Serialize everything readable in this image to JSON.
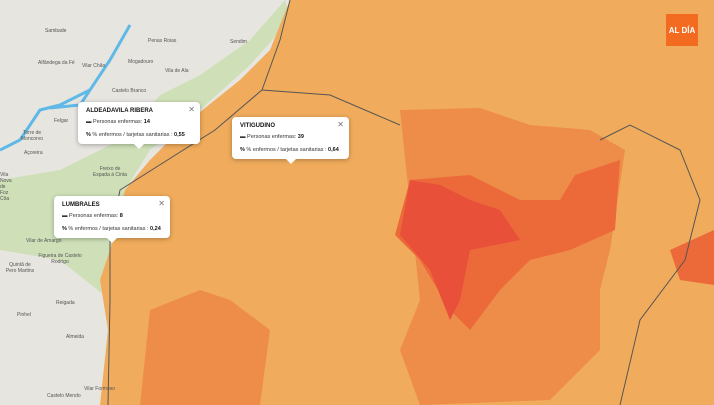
{
  "logo": {
    "text": "AL DÍA",
    "color": "#f26b21"
  },
  "colors": {
    "low": "#f0ac5c",
    "mid": "#ee8c4a",
    "high": "#ec6a3a",
    "highest": "#e8503a",
    "portugal_green": "#cfe0b8",
    "land": "#e7e5e0",
    "water": "#5fb8e6"
  },
  "places": [
    "Sambade",
    "Penas Roias",
    "Sendim",
    "Alfândega da Fé",
    "Vilar Chão",
    "Mogadouro",
    "Vila de Ala",
    "Castelo Branco",
    "Felgar",
    "Torre de Moncorvo",
    "Açoreira",
    "Freixo de Espada à Cinta",
    "Vila Nova de Foz Côa",
    "Vilar de Amargo",
    "Figueira de Castelo Rodrigo",
    "Quintã de Pero Martins",
    "Reigada",
    "Pinhel",
    "Almeida",
    "Vilar Formoso",
    "Castelo Mendo"
  ],
  "popups": [
    {
      "title": "ALDEADAVILA RIBERA",
      "sick_label": "Personas enfermas:",
      "sick": "14",
      "ratio_label": "% enfermos / tarjetas sanitarias :",
      "ratio": "0,55"
    },
    {
      "title": "VITIGUDINO",
      "sick_label": "Personas enfermas:",
      "sick": "39",
      "ratio_label": "% enfermos / tarjetas sanitarias :",
      "ratio": "0,64"
    },
    {
      "title": "LUMBRALES",
      "sick_label": "Personas enfermas:",
      "sick": "8",
      "ratio_label": "% enfermos / tarjetas sanitarias :",
      "ratio": "0,24"
    }
  ]
}
